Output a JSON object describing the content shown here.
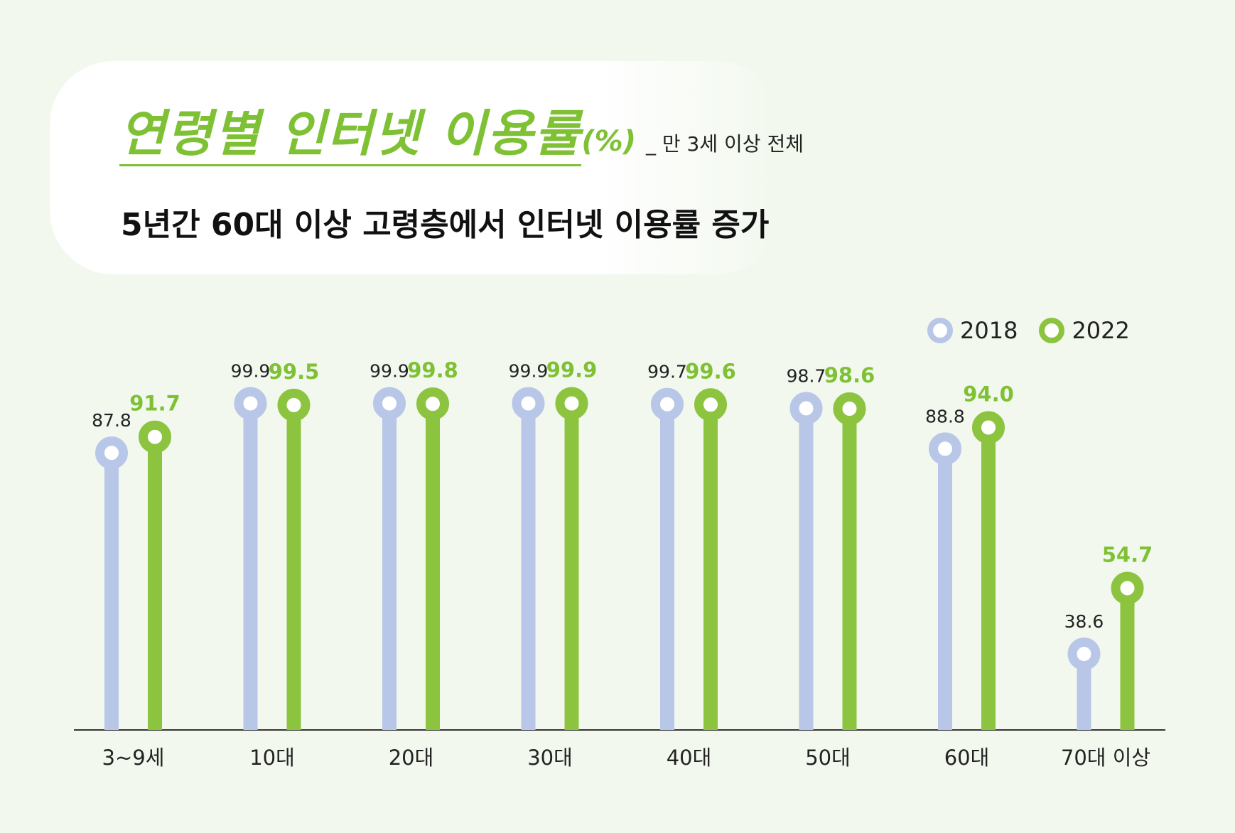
{
  "title": {
    "main": "연령별 인터넷 이용률",
    "unit": "(%)",
    "note": "_ 만 3세 이상 전체"
  },
  "subtitle": "5년간 60대 이상 고령층에서 인터넷 이용률 증가",
  "colors": {
    "s2018": "#b8c6e8",
    "s2022": "#8cc43f",
    "label2022": "#7fc134",
    "axis": "#333333"
  },
  "chart_data": {
    "type": "lollipop",
    "categories": [
      "3~9세",
      "10대",
      "20대",
      "30대",
      "40대",
      "50대",
      "60대",
      "70대 이상"
    ],
    "series": [
      {
        "name": "2018",
        "values": [
          87.8,
          99.9,
          99.9,
          99.9,
          99.7,
          98.7,
          88.8,
          38.6
        ],
        "labels": [
          "87.8",
          "99.9",
          "99.9",
          "99.9",
          "99.7",
          "98.7",
          "88.8",
          "38.6"
        ]
      },
      {
        "name": "2022",
        "values": [
          91.7,
          99.5,
          99.8,
          99.9,
          99.6,
          98.6,
          94.0,
          54.7
        ],
        "labels": [
          "91.7",
          "99.5",
          "99.8",
          "99.9",
          "99.6",
          "98.6",
          "94.0",
          "54.7"
        ]
      }
    ],
    "legend": "top-right"
  }
}
